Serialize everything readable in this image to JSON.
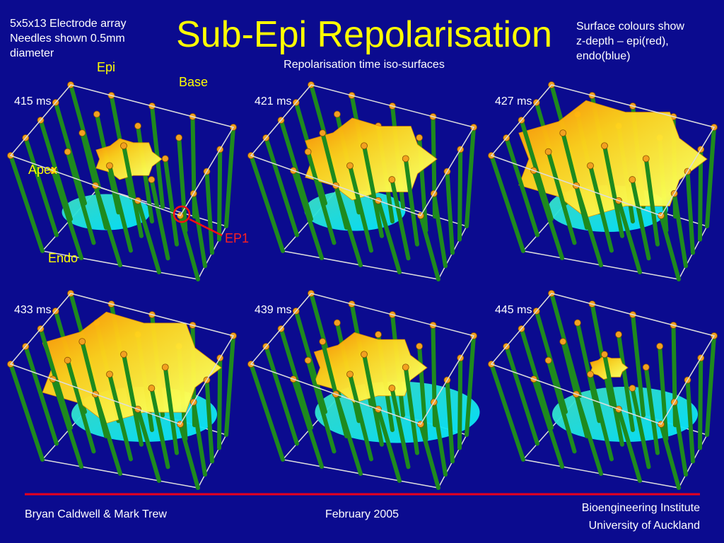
{
  "header": {
    "note_left": [
      "5x5x13 Electrode array",
      "Needles shown 0.5mm",
      "diameter"
    ],
    "title": "Sub-Epi Repolarisation",
    "subtitle": "Repolarisation time iso-surfaces",
    "note_right": [
      "Surface colours show",
      "z-depth – epi(red),",
      "endo(blue)"
    ]
  },
  "annotations": {
    "epi": "Epi",
    "base": "Base",
    "apex": "Apex",
    "endo": "Endo",
    "ep1": "EP1"
  },
  "panels": [
    {
      "label": "415 ms"
    },
    {
      "label": "421 ms"
    },
    {
      "label": "427 ms"
    },
    {
      "label": "433 ms"
    },
    {
      "label": "439 ms"
    },
    {
      "label": "445 ms"
    }
  ],
  "footer": {
    "authors": "Bryan Caldwell & Mark Trew",
    "date": "February 2005",
    "institution": [
      "Bioengineering Institute",
      "University of Auckland"
    ]
  }
}
